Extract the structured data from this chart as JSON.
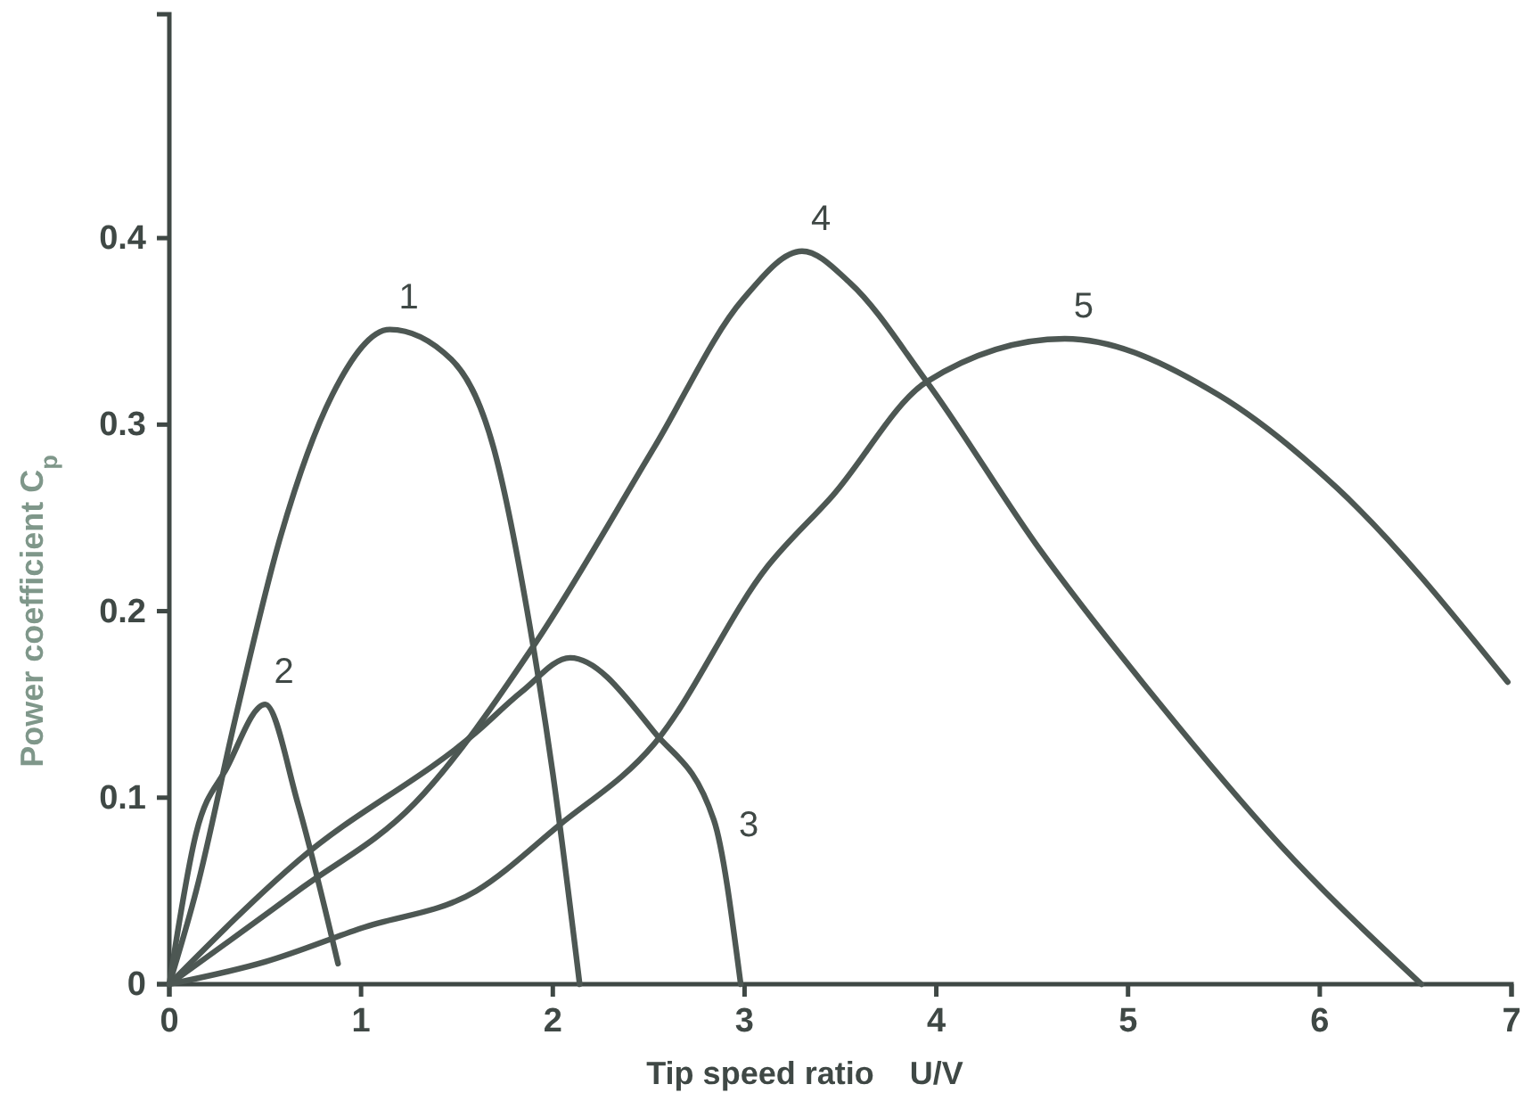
{
  "chart_data": {
    "type": "line",
    "xlabel": "Tip speed ratio    U/V",
    "ylabel": "Power coefficient C$_{p}$",
    "xlim": [
      0,
      7
    ],
    "ylim": [
      0,
      0.52
    ],
    "xticks": [
      0,
      1,
      2,
      3,
      4,
      5,
      6,
      7
    ],
    "yticks": [
      0,
      0.1,
      0.2,
      0.3,
      0.4
    ],
    "grid": false,
    "marker": "none",
    "line_style": "solid",
    "series": [
      {
        "name": "1",
        "color": "#4d5753",
        "x": [
          0,
          0.14,
          0.35,
          0.58,
          0.85,
          1.15,
          1.47,
          1.69,
          1.88,
          2.0,
          2.14
        ],
        "values": [
          0,
          0.05,
          0.145,
          0.24,
          0.316,
          0.351,
          0.335,
          0.288,
          0.192,
          0.113,
          0
        ]
      },
      {
        "name": "2",
        "color": "#4d5753",
        "x": [
          0,
          0.14,
          0.3,
          0.5,
          0.67,
          0.88
        ],
        "values": [
          0,
          0.081,
          0.116,
          0.15,
          0.097,
          0.011
        ]
      },
      {
        "name": "3",
        "color": "#4d5753",
        "x": [
          0,
          0.67,
          1.6,
          1.84,
          2.09,
          2.53,
          2.84,
          2.98
        ],
        "values": [
          0,
          0.066,
          0.135,
          0.157,
          0.175,
          0.135,
          0.088,
          0
        ]
      },
      {
        "name": "4",
        "color": "#4d5753",
        "x": [
          0,
          0.67,
          1.28,
          1.91,
          2.53,
          2.99,
          3.3,
          3.55,
          3.95,
          4.54,
          5.16,
          5.79,
          6.53
        ],
        "values": [
          0,
          0.05,
          0.097,
          0.183,
          0.288,
          0.367,
          0.393,
          0.376,
          0.323,
          0.233,
          0.151,
          0.075,
          0
        ]
      },
      {
        "name": "5",
        "color": "#4d5753",
        "x": [
          0,
          0.5,
          1.0,
          1.6,
          2.03,
          2.53,
          3.12,
          3.46,
          3.95,
          4.67,
          5.47,
          6.09,
          6.98
        ],
        "values": [
          0,
          0.012,
          0.03,
          0.05,
          0.085,
          0.129,
          0.224,
          0.262,
          0.323,
          0.346,
          0.316,
          0.266,
          0.162
        ]
      }
    ]
  }
}
